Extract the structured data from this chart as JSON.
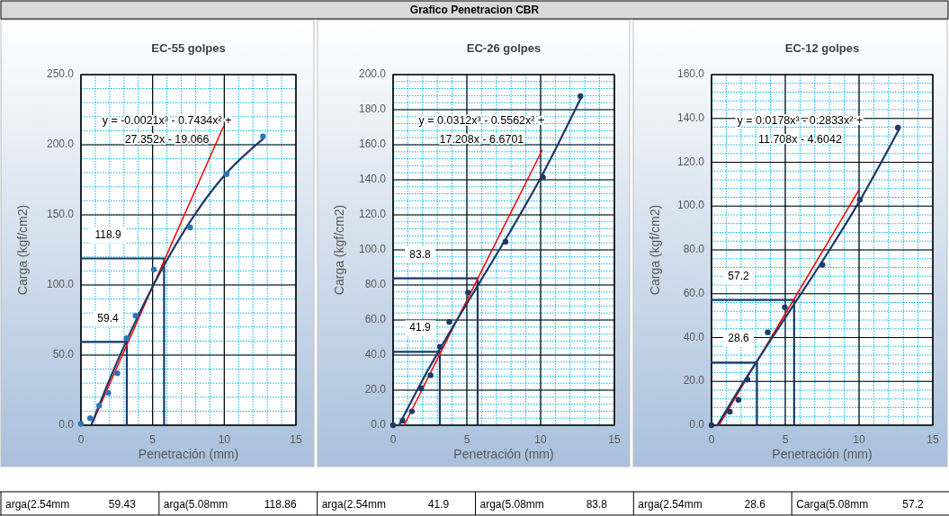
{
  "chart_data": [
    {
      "type": "scatter",
      "title": "EC-55 golpes",
      "xlabel": "Penetración (mm)",
      "ylabel": "Carga (kgf/cm2)",
      "xlim": [
        0,
        15
      ],
      "ylim": [
        0,
        250
      ],
      "xticks": [
        0,
        5,
        10,
        15
      ],
      "yticks": [
        {
          "value": 0,
          "label": "0.0"
        },
        {
          "value": 50,
          "label": "50.0"
        },
        {
          "value": 100,
          "label": "100.0"
        },
        {
          "value": 150,
          "label": "150.0"
        },
        {
          "value": 200,
          "label": "200.0"
        },
        {
          "value": 250,
          "label": "250.0"
        }
      ],
      "grid": true,
      "series": [
        {
          "type": "line",
          "color": "#1f3864",
          "x": [
            0,
            3.2,
            3.2
          ],
          "values": [
            59.4,
            59.4,
            0
          ]
        },
        {
          "type": "line",
          "color": "#1f3864",
          "x": [
            0,
            5.8,
            5.8
          ],
          "values": [
            118.9,
            118.9,
            0
          ]
        },
        {
          "type": "line",
          "color": "#ff0000",
          "x": [
            0.73,
            9.94
          ],
          "values": [
            0,
            213
          ]
        },
        {
          "type": "line",
          "color": "#1f3864",
          "x": [
            0.72,
            2,
            4,
            6,
            8,
            10,
            12.7
          ],
          "values": [
            0,
            32.6,
            78.3,
            117.8,
            151.1,
            178,
            204.1
          ]
        },
        {
          "type": "scatter",
          "color": "#2e75b6",
          "marker": "circle",
          "x": [
            0,
            0.64,
            1.27,
            1.91,
            2.54,
            3.18,
            3.81,
            5.08,
            7.62,
            10.16,
            12.7
          ],
          "values": [
            1,
            5,
            14,
            23,
            37,
            62,
            78,
            111,
            141,
            179,
            206
          ]
        }
      ],
      "annotations": [
        "y = -0.0021x³ - 0.7434x² + 27.352x - 19.066",
        "59.4",
        "118.9"
      ]
    },
    {
      "type": "scatter",
      "title": "EC-26 golpes",
      "xlabel": "Penetración (mm)",
      "ylabel": "Carga (kgf/cm2)",
      "xlim": [
        0,
        15
      ],
      "ylim": [
        0,
        200
      ],
      "xticks": [
        0,
        5,
        10,
        15
      ],
      "yticks": [
        {
          "value": 0,
          "label": "0.0"
        },
        {
          "value": 20,
          "label": "20.0"
        },
        {
          "value": 40,
          "label": "40.0"
        },
        {
          "value": 60,
          "label": "60.0"
        },
        {
          "value": 80,
          "label": "80.0"
        },
        {
          "value": 100,
          "label": "100.0"
        },
        {
          "value": 120,
          "label": "120.0"
        },
        {
          "value": 140,
          "label": "140.0"
        },
        {
          "value": 160,
          "label": "160.0"
        },
        {
          "value": 180,
          "label": "180.0"
        },
        {
          "value": 200,
          "label": "200.0"
        }
      ],
      "grid": true,
      "series": [
        {
          "type": "line",
          "color": "#1f3864",
          "x": [
            0,
            3.17,
            3.17
          ],
          "values": [
            41.9,
            41.9,
            0
          ]
        },
        {
          "type": "line",
          "color": "#1f3864",
          "x": [
            0,
            5.73,
            5.73
          ],
          "values": [
            83.8,
            83.8,
            0
          ]
        },
        {
          "type": "line",
          "color": "#ff0000",
          "x": [
            0.75,
            10.1
          ],
          "values": [
            0,
            156.8
          ]
        },
        {
          "type": "line",
          "color": "#1f3864",
          "x": [
            0.4,
            2,
            4,
            6,
            8,
            10,
            12.7
          ],
          "values": [
            0,
            25.8,
            55.3,
            83.3,
            111.4,
            141,
            186.1
          ]
        },
        {
          "type": "scatter",
          "color": "#1f3864",
          "marker": "circle",
          "x": [
            0,
            0.64,
            1.27,
            1.91,
            2.54,
            3.18,
            3.81,
            5.08,
            7.62,
            10.16,
            12.7
          ],
          "values": [
            0,
            2.6,
            7.9,
            21,
            28.5,
            44.8,
            59,
            75.7,
            104.6,
            141.5,
            187.7
          ]
        }
      ],
      "annotations": [
        "y = 0.0312x³ - 0.5562x² + 17.208x - 6.6701",
        "41.9",
        "83.8"
      ]
    },
    {
      "type": "scatter",
      "title": "EC-12 golpes",
      "xlabel": "Penetración (mm)",
      "ylabel": "Carga (kgf/cm2)",
      "xlim": [
        0,
        15
      ],
      "ylim": [
        0,
        160
      ],
      "xticks": [
        0,
        5,
        10,
        15
      ],
      "yticks": [
        {
          "value": 0,
          "label": "0.0"
        },
        {
          "value": 20,
          "label": "20.0"
        },
        {
          "value": 40,
          "label": "40.0"
        },
        {
          "value": 60,
          "label": "60.0"
        },
        {
          "value": 80,
          "label": "80.0"
        },
        {
          "value": 100,
          "label": "100.0"
        },
        {
          "value": 120,
          "label": "120.0"
        },
        {
          "value": 140,
          "label": "140.0"
        },
        {
          "value": 160,
          "label": "160.0"
        }
      ],
      "grid": true,
      "series": [
        {
          "type": "line",
          "color": "#1f3864",
          "x": [
            0,
            3.08,
            3.08
          ],
          "values": [
            28.6,
            28.6,
            0
          ]
        },
        {
          "type": "line",
          "color": "#1f3864",
          "x": [
            0,
            5.6,
            5.6
          ],
          "values": [
            57.2,
            57.2,
            0
          ]
        },
        {
          "type": "line",
          "color": "#ff0000",
          "x": [
            0.5,
            10
          ],
          "values": [
            0,
            107.4
          ]
        },
        {
          "type": "line",
          "color": "#1f3864",
          "x": [
            0.4,
            2,
            4,
            6,
            8,
            10,
            12.7
          ],
          "values": [
            0,
            17.8,
            38.8,
            59.3,
            80,
            101.9,
            134.9
          ]
        },
        {
          "type": "scatter",
          "color": "#1f3864",
          "marker": "circle",
          "x": [
            0,
            1.24,
            1.82,
            2.43,
            3.81,
            4.97,
            7.52,
            10.05,
            12.63
          ],
          "values": [
            0,
            6.2,
            11.6,
            20.8,
            42.4,
            53.8,
            73.2,
            102.9,
            135.8
          ]
        }
      ],
      "annotations": [
        "y = 0.0178x³ - 0.2833x² + 11.708x - 4.6042",
        "28.6",
        "57.2"
      ]
    },
    {
      "type": "other",
      "title": "Grafico Penetracion CBR",
      "annotations": [
        "arga(2.54mm",
        "59.43",
        "arga(5.08mm",
        "118.86",
        "arga(2.54mm",
        "41.9",
        "arga(5.08mm",
        "83.8",
        "arga(2.54mm",
        "28.6",
        "Carga(5.08mm",
        "57.2"
      ]
    }
  ]
}
